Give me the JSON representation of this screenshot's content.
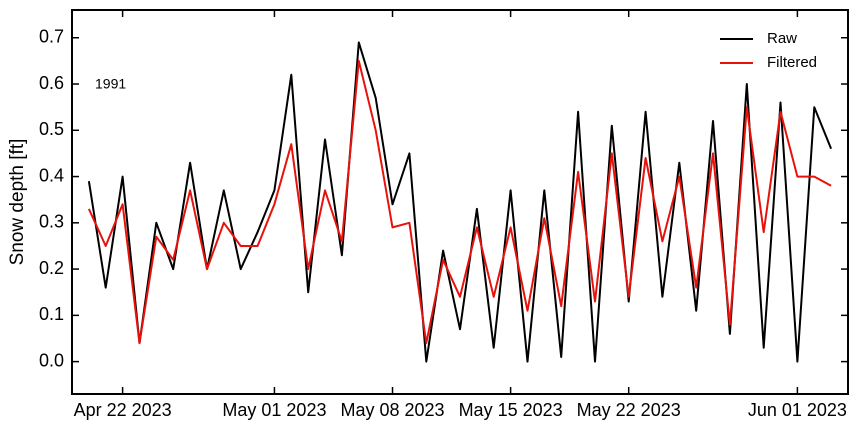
{
  "chart_data": {
    "type": "line",
    "ylabel": "Snow depth [ft]",
    "annotation": "1991",
    "x": [
      "2023-04-20",
      "2023-04-21",
      "2023-04-22",
      "2023-04-23",
      "2023-04-24",
      "2023-04-25",
      "2023-04-26",
      "2023-04-27",
      "2023-04-28",
      "2023-04-29",
      "2023-04-30",
      "2023-05-01",
      "2023-05-02",
      "2023-05-03",
      "2023-05-04",
      "2023-05-05",
      "2023-05-06",
      "2023-05-07",
      "2023-05-08",
      "2023-05-09",
      "2023-05-10",
      "2023-05-11",
      "2023-05-12",
      "2023-05-13",
      "2023-05-14",
      "2023-05-15",
      "2023-05-16",
      "2023-05-17",
      "2023-05-18",
      "2023-05-19",
      "2023-05-20",
      "2023-05-21",
      "2023-05-22",
      "2023-05-23",
      "2023-05-24",
      "2023-05-25",
      "2023-05-26",
      "2023-05-27",
      "2023-05-28",
      "2023-05-29",
      "2023-05-30",
      "2023-05-31",
      "2023-06-01",
      "2023-06-02",
      "2023-06-03"
    ],
    "series": [
      {
        "name": "Raw",
        "color": "#000000",
        "values": [
          0.39,
          0.16,
          0.4,
          0.04,
          0.3,
          0.2,
          0.43,
          0.2,
          0.37,
          0.2,
          0.28,
          0.37,
          0.62,
          0.15,
          0.48,
          0.23,
          0.69,
          0.57,
          0.34,
          0.45,
          0.0,
          0.24,
          0.07,
          0.33,
          0.03,
          0.37,
          0.0,
          0.37,
          0.01,
          0.54,
          0.0,
          0.51,
          0.13,
          0.54,
          0.14,
          0.43,
          0.11,
          0.52,
          0.06,
          0.6,
          0.03,
          0.56,
          0.0,
          0.55,
          0.46
        ]
      },
      {
        "name": "Filtered",
        "color": "#e8120c",
        "values": [
          0.33,
          0.25,
          0.34,
          0.04,
          0.27,
          0.22,
          0.37,
          0.2,
          0.3,
          0.25,
          0.25,
          0.34,
          0.47,
          0.2,
          0.37,
          0.26,
          0.65,
          0.5,
          0.29,
          0.3,
          0.04,
          0.22,
          0.14,
          0.29,
          0.14,
          0.29,
          0.11,
          0.31,
          0.12,
          0.41,
          0.13,
          0.45,
          0.14,
          0.44,
          0.26,
          0.4,
          0.16,
          0.45,
          0.08,
          0.55,
          0.28,
          0.54,
          0.4,
          0.4,
          0.38
        ]
      }
    ],
    "xlim": [
      "2023-04-19",
      "2023-06-04"
    ],
    "xticks": [
      {
        "value": "2023-04-22",
        "label": "Apr 22 2023"
      },
      {
        "value": "2023-05-01",
        "label": "May 01 2023"
      },
      {
        "value": "2023-05-08",
        "label": "May 08 2023"
      },
      {
        "value": "2023-05-15",
        "label": "May 15 2023"
      },
      {
        "value": "2023-05-22",
        "label": "May 22 2023"
      },
      {
        "value": "2023-06-01",
        "label": "Jun 01 2023"
      }
    ],
    "ylim": [
      -0.07,
      0.76
    ],
    "yticks": [
      {
        "value": 0,
        "label": "0.0"
      },
      0.1,
      0.2,
      0.3,
      0.4,
      0.5,
      0.6,
      0.7
    ],
    "legend": "upper right",
    "grid": false
  }
}
